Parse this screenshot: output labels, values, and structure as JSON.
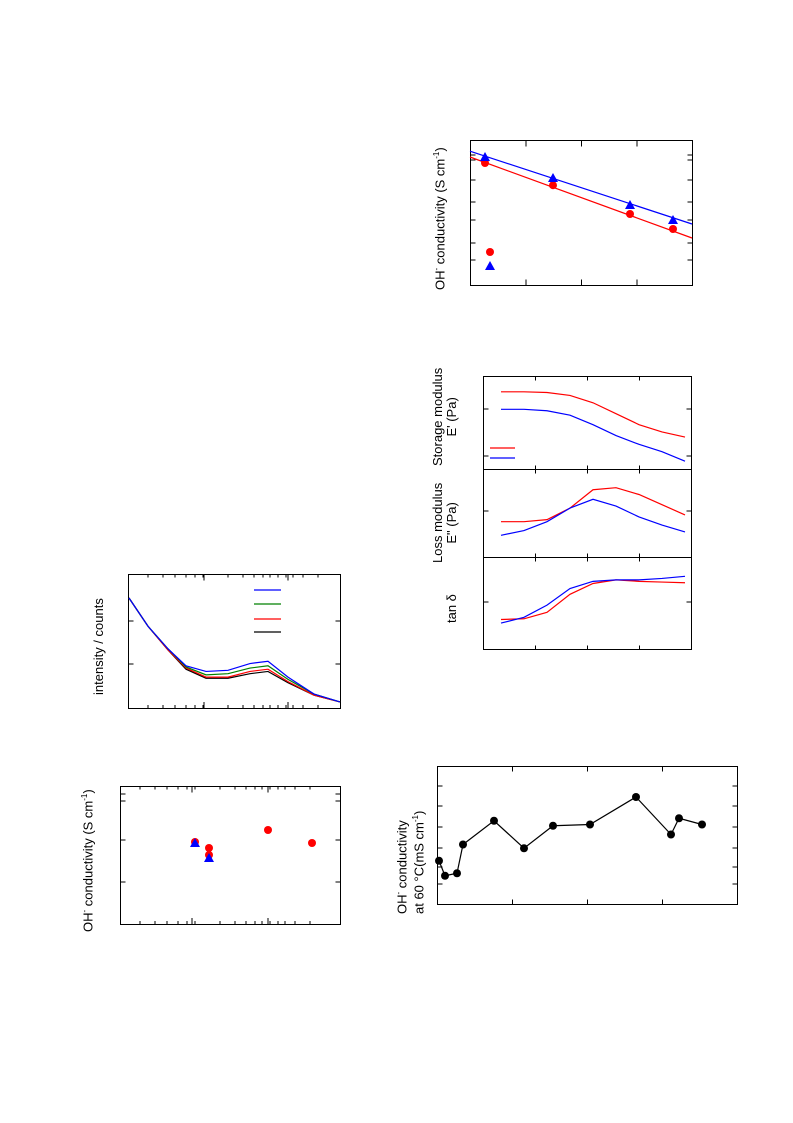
{
  "labels": {
    "saxs_ylabel": "intensity / counts",
    "cond_left_ylabel_main": "OH",
    "cond_left_ylabel_sup": "-",
    "cond_left_ylabel_rest": " conductivity (S cm",
    "cond_left_ylabel_exp": "-1",
    "cond_left_ylabel_end": ")",
    "arr_ylabel_main": "OH",
    "arr_ylabel_sup": "-",
    "arr_ylabel_rest": " conductivity (S cm",
    "arr_ylabel_exp": "-1",
    "arr_ylabel_end": ")",
    "storage_line1": "Storage modulus",
    "storage_line2": "E' (Pa)",
    "loss_line1": "Loss modulus",
    "loss_line2": "E\" (Pa)",
    "tan_label": "tan δ",
    "bottom_line1_main": "OH",
    "bottom_line1_sup": "-",
    "bottom_line1_rest": " conductivity",
    "bottom_line2": "at 60 °C(mS cm",
    "bottom_line2_exp": "-1",
    "bottom_line2_end": ")"
  },
  "colors": {
    "red": "#ff0000",
    "blue": "#0000ff",
    "green": "#008000",
    "black": "#000000"
  },
  "chart_data": [
    {
      "id": "arrhenius",
      "type": "scatter",
      "series": [
        {
          "color": "#ff0000",
          "marker": "circle",
          "x": [
            0,
            1,
            2,
            3
          ],
          "y": [
            0.0,
            -0.37,
            -0.85,
            -1.1
          ],
          "fit": [
            0.05,
            -1.2
          ]
        },
        {
          "color": "#0000ff",
          "marker": "triangle",
          "x": [
            0,
            1,
            2,
            3
          ],
          "y": [
            0.1,
            -0.25,
            -0.7,
            -0.95
          ],
          "fit": [
            0.13,
            -1.0
          ]
        }
      ],
      "legend": "bottom-left"
    },
    {
      "id": "dma",
      "type": "line",
      "panels": [
        {
          "name": "storage",
          "series": [
            {
              "color": "#ff0000",
              "y": [
                0.9,
                0.9,
                0.89,
                0.85,
                0.75,
                0.6,
                0.45,
                0.35,
                0.28
              ]
            },
            {
              "color": "#0000ff",
              "y": [
                0.66,
                0.66,
                0.64,
                0.58,
                0.45,
                0.3,
                0.18,
                0.08,
                -0.05
              ]
            }
          ],
          "legend": "bottom-left"
        },
        {
          "name": "loss",
          "series": [
            {
              "color": "#ff0000",
              "y": [
                0.35,
                0.35,
                0.38,
                0.55,
                0.82,
                0.85,
                0.75,
                0.6,
                0.45
              ]
            },
            {
              "color": "#0000ff",
              "y": [
                0.15,
                0.22,
                0.35,
                0.55,
                0.68,
                0.58,
                0.42,
                0.3,
                0.2
              ]
            }
          ]
        },
        {
          "name": "tan",
          "series": [
            {
              "color": "#ff0000",
              "y": [
                0.25,
                0.26,
                0.35,
                0.6,
                0.75,
                0.8,
                0.78,
                0.77,
                0.76
              ]
            },
            {
              "color": "#0000ff",
              "y": [
                0.2,
                0.28,
                0.45,
                0.68,
                0.78,
                0.8,
                0.8,
                0.82,
                0.85
              ]
            }
          ]
        }
      ]
    },
    {
      "id": "saxs",
      "type": "line",
      "legend": "top-right",
      "series": [
        {
          "color": "#0000ff",
          "y": [
            1.0,
            0.75,
            0.55,
            0.4,
            0.35,
            0.36,
            0.42,
            0.44,
            0.3,
            0.15,
            0.08
          ]
        },
        {
          "color": "#008000",
          "y": [
            1.0,
            0.75,
            0.55,
            0.39,
            0.32,
            0.33,
            0.38,
            0.4,
            0.28,
            0.15,
            0.08
          ]
        },
        {
          "color": "#ff0000",
          "y": [
            1.0,
            0.75,
            0.54,
            0.38,
            0.3,
            0.3,
            0.35,
            0.37,
            0.26,
            0.14,
            0.08
          ]
        },
        {
          "color": "#000000",
          "y": [
            1.0,
            0.75,
            0.54,
            0.37,
            0.29,
            0.29,
            0.33,
            0.35,
            0.25,
            0.14,
            0.08
          ]
        }
      ]
    },
    {
      "id": "cond_left",
      "type": "scatter",
      "series": [
        {
          "color": "#ff0000",
          "marker": "circle",
          "x": [
            0.42,
            0.42,
            0.73,
            0.92
          ],
          "y": [
            0.52,
            0.46,
            0.67,
            0.57
          ]
        },
        {
          "color": "#0000ff",
          "marker": "triangle",
          "x": [
            0.37,
            0.42
          ],
          "y": [
            0.57,
            0.46
          ]
        }
      ]
    },
    {
      "id": "bottom_series",
      "type": "line",
      "series": [
        {
          "color": "#000000",
          "marker": "circle",
          "y": [
            0.25,
            0.13,
            0.15,
            0.38,
            0.57,
            0.35,
            0.53,
            0.54,
            0.76,
            0.46,
            0.59,
            0.54
          ]
        }
      ]
    }
  ]
}
